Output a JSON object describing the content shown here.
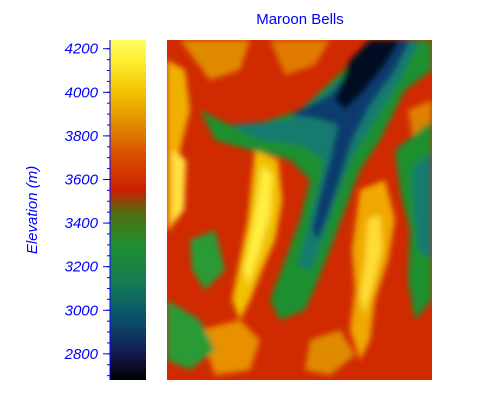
{
  "chart_data": {
    "type": "heatmap",
    "title": "Maroon Bells",
    "colorbar": {
      "label": "Elevation (m)",
      "range": [
        2680,
        4240
      ],
      "ticks": [
        2800,
        3000,
        3200,
        3400,
        3600,
        3800,
        4000,
        4200
      ],
      "tick_labels": [
        "2800",
        "3000",
        "3200",
        "3400",
        "3600",
        "3800",
        "4000",
        "4200"
      ],
      "minor_step": 50,
      "colorscale": [
        {
          "value": 2680,
          "color": "#000000"
        },
        {
          "value": 2800,
          "color": "#141a50"
        },
        {
          "value": 2960,
          "color": "#0a4f6e"
        },
        {
          "value": 3120,
          "color": "#137a55"
        },
        {
          "value": 3300,
          "color": "#1f8f2e"
        },
        {
          "value": 3450,
          "color": "#556b10"
        },
        {
          "value": 3550,
          "color": "#cc2000"
        },
        {
          "value": 3700,
          "color": "#d84a00"
        },
        {
          "value": 3850,
          "color": "#e08a00"
        },
        {
          "value": 4000,
          "color": "#f2c300"
        },
        {
          "value": 4150,
          "color": "#ffee33"
        },
        {
          "value": 4240,
          "color": "#ffff66"
        }
      ]
    },
    "grid": false,
    "legend": "colorbar-left",
    "text_color": "#0000ff"
  }
}
